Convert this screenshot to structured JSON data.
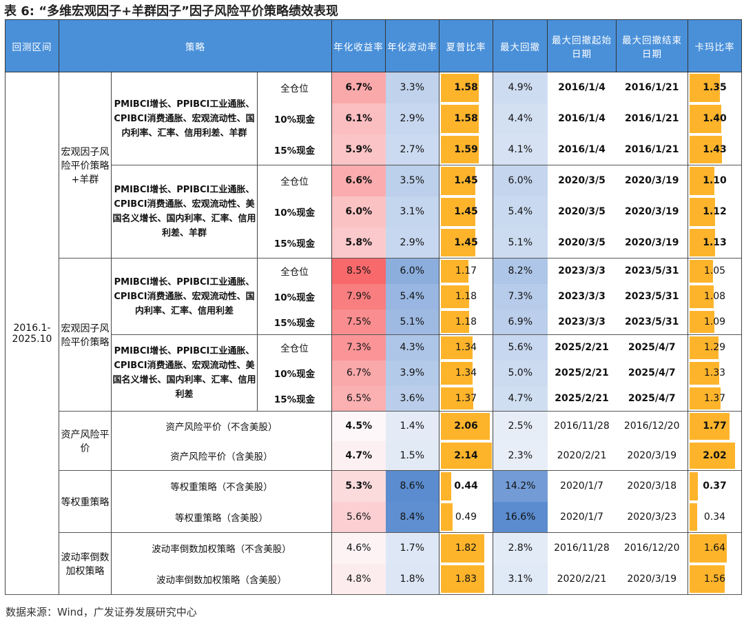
{
  "title": "表 6: “多维宏观因子+羊群因子”因子风险平价策略绩效表现",
  "headers": [
    "回测区间",
    "策略",
    "年化收益率",
    "年化波动率",
    "夏普比率",
    "最大回撤",
    "最大回撤起始日期",
    "最大回撤结束日期",
    "卡玛比率"
  ],
  "period": "2016.1-2025.10",
  "colors": {
    "header": "#4a90d9",
    "bar": "#fdb42b",
    "return_high": "#f8696b",
    "vol_high": "#5b8ccf"
  },
  "groups": [
    {
      "label": "宏观因子风险平价策略+羊群",
      "subgroups": [
        {
          "desc": "PMIBCI增长、PPIBCI工业通胀、CPIBCI消费通胀、宏观流动性、国内利率、汇率、信用利差、羊群",
          "rows": [
            {
              "pos": "全仓位",
              "ret": "6.7%",
              "vol": "3.3%",
              "sharpe": "1.58",
              "mdd": "4.9%",
              "start": "2016/1/4",
              "end": "2016/1/21",
              "calmar": "1.35",
              "bold": [
                1,
                0,
                1,
                0,
                1,
                1,
                1
              ]
            },
            {
              "pos": "10%现金",
              "ret": "6.1%",
              "vol": "2.9%",
              "sharpe": "1.58",
              "mdd": "4.4%",
              "start": "2016/1/4",
              "end": "2016/1/21",
              "calmar": "1.40",
              "bold": [
                1,
                0,
                1,
                0,
                1,
                1,
                1
              ]
            },
            {
              "pos": "15%现金",
              "ret": "5.9%",
              "vol": "2.7%",
              "sharpe": "1.59",
              "mdd": "4.1%",
              "start": "2016/1/4",
              "end": "2016/1/21",
              "calmar": "1.43",
              "bold": [
                1,
                0,
                1,
                0,
                1,
                1,
                1
              ]
            }
          ]
        },
        {
          "desc": "PMIBCI增长、PPIBCI工业通胀、CPIBCI消费通胀、宏观流动性、美国名义增长、国内利率、汇率、信用利差、羊群",
          "rows": [
            {
              "pos": "全仓位",
              "ret": "6.6%",
              "vol": "3.5%",
              "sharpe": "1.45",
              "mdd": "6.0%",
              "start": "2020/3/5",
              "end": "2020/3/19",
              "calmar": "1.10",
              "bold": [
                1,
                0,
                1,
                0,
                1,
                1,
                1
              ]
            },
            {
              "pos": "10%现金",
              "ret": "6.0%",
              "vol": "3.1%",
              "sharpe": "1.45",
              "mdd": "5.4%",
              "start": "2020/3/5",
              "end": "2020/3/19",
              "calmar": "1.12",
              "bold": [
                1,
                0,
                1,
                0,
                1,
                1,
                1
              ]
            },
            {
              "pos": "15%现金",
              "ret": "5.8%",
              "vol": "2.9%",
              "sharpe": "1.45",
              "mdd": "5.1%",
              "start": "2020/3/5",
              "end": "2020/3/19",
              "calmar": "1.13",
              "bold": [
                1,
                0,
                1,
                0,
                1,
                1,
                1
              ]
            }
          ]
        }
      ]
    },
    {
      "label": "宏观因子风险平价策略",
      "subgroups": [
        {
          "desc": "PMIBCI增长、PPIBCI工业通胀、CPIBCI消费通胀、宏观流动性、国内利率、汇率、信用利差",
          "rows": [
            {
              "pos": "全仓位",
              "ret": "8.5%",
              "vol": "6.0%",
              "sharpe": "1.17",
              "mdd": "8.2%",
              "start": "2023/3/3",
              "end": "2023/5/31",
              "calmar": "1.05",
              "bold": [
                0,
                0,
                0,
                0,
                1,
                1,
                0
              ]
            },
            {
              "pos": "10%现金",
              "ret": "7.9%",
              "vol": "5.4%",
              "sharpe": "1.18",
              "mdd": "7.3%",
              "start": "2023/3/3",
              "end": "2023/5/31",
              "calmar": "1.08",
              "bold": [
                0,
                0,
                0,
                0,
                1,
                1,
                0
              ]
            },
            {
              "pos": "15%现金",
              "ret": "7.5%",
              "vol": "5.1%",
              "sharpe": "1.18",
              "mdd": "6.9%",
              "start": "2023/3/3",
              "end": "2023/5/31",
              "calmar": "1.09",
              "bold": [
                0,
                0,
                0,
                0,
                1,
                1,
                0
              ]
            }
          ]
        },
        {
          "desc": "PMIBCI增长、PPIBCI工业通胀、CPIBCI消费通胀、宏观流动性、美国名义增长、国内利率、汇率、信用利差",
          "rows": [
            {
              "pos": "全仓位",
              "ret": "7.3%",
              "vol": "4.3%",
              "sharpe": "1.34",
              "mdd": "5.6%",
              "start": "2025/2/21",
              "end": "2025/4/7",
              "calmar": "1.29",
              "bold": [
                0,
                0,
                0,
                0,
                1,
                1,
                0
              ]
            },
            {
              "pos": "10%现金",
              "ret": "6.7%",
              "vol": "3.9%",
              "sharpe": "1.34",
              "mdd": "5.0%",
              "start": "2025/2/21",
              "end": "2025/4/7",
              "calmar": "1.33",
              "bold": [
                0,
                0,
                0,
                0,
                1,
                1,
                0
              ]
            },
            {
              "pos": "15%现金",
              "ret": "6.5%",
              "vol": "3.6%",
              "sharpe": "1.37",
              "mdd": "4.7%",
              "start": "2025/2/21",
              "end": "2025/4/7",
              "calmar": "1.37",
              "bold": [
                0,
                0,
                0,
                0,
                1,
                1,
                0
              ]
            }
          ]
        }
      ]
    },
    {
      "label": "资产风险平价",
      "rows": [
        {
          "name": "资产风险平价（不含美股）",
          "ret": "4.5%",
          "vol": "1.4%",
          "sharpe": "2.06",
          "mdd": "2.5%",
          "start": "2016/11/28",
          "end": "2016/12/20",
          "calmar": "1.77",
          "bold": [
            1,
            0,
            1,
            0,
            0,
            0,
            1
          ]
        },
        {
          "name": "资产风险平价（含美股）",
          "ret": "4.7%",
          "vol": "1.5%",
          "sharpe": "2.14",
          "mdd": "2.3%",
          "start": "2020/2/21",
          "end": "2020/3/19",
          "calmar": "2.02",
          "bold": [
            1,
            0,
            1,
            0,
            0,
            0,
            1
          ]
        }
      ]
    },
    {
      "label": "等权重策略",
      "rows": [
        {
          "name": "等权重策略（不含美股）",
          "ret": "5.3%",
          "vol": "8.6%",
          "sharpe": "0.44",
          "mdd": "14.2%",
          "start": "2020/1/7",
          "end": "2020/3/18",
          "calmar": "0.37",
          "bold": [
            1,
            0,
            1,
            0,
            0,
            0,
            1
          ]
        },
        {
          "name": "等权重策略（含美股）",
          "ret": "5.6%",
          "vol": "8.4%",
          "sharpe": "0.49",
          "mdd": "16.6%",
          "start": "2020/1/7",
          "end": "2020/3/23",
          "calmar": "0.34",
          "bold": [
            0,
            0,
            0,
            0,
            0,
            0,
            0
          ]
        }
      ]
    },
    {
      "label": "波动率倒数加权策略",
      "rows": [
        {
          "name": "波动率倒数加权策略（不含美股）",
          "ret": "4.6%",
          "vol": "1.7%",
          "sharpe": "1.82",
          "mdd": "2.8%",
          "start": "2016/11/28",
          "end": "2016/12/20",
          "calmar": "1.64",
          "bold": [
            0,
            0,
            0,
            0,
            0,
            0,
            0
          ]
        },
        {
          "name": "波动率倒数加权策略（含美股）",
          "ret": "4.8%",
          "vol": "1.8%",
          "sharpe": "1.83",
          "mdd": "3.1%",
          "start": "2020/2/21",
          "end": "2020/3/19",
          "calmar": "1.56",
          "bold": [
            0,
            0,
            0,
            0,
            0,
            0,
            0
          ]
        }
      ]
    }
  ],
  "source": "数据来源：Wind，广发证券发展研究中心"
}
